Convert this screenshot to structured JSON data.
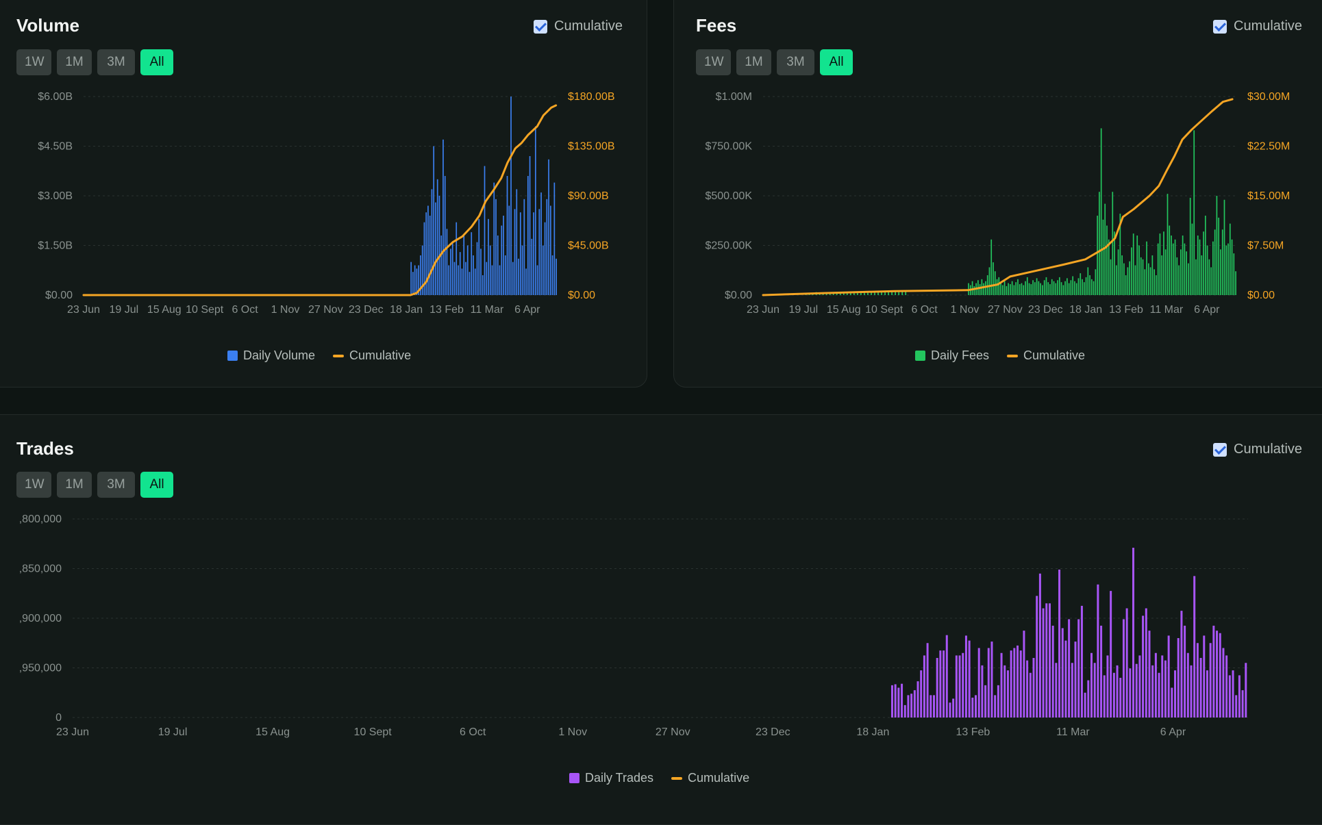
{
  "colors": {
    "volume": "#3b7ff0",
    "fees": "#23c55e",
    "trades": "#a855f7",
    "cumulative": "#f5a524",
    "axis_text": "#8a928f",
    "grid": "#2a3230",
    "active_range": "#12e38f"
  },
  "ranges": [
    "1W",
    "1M",
    "3M",
    "All"
  ],
  "panels": {
    "volume": {
      "title": "Volume",
      "cumulative_label": "Cumulative",
      "legend_bar": "Daily Volume",
      "legend_line": "Cumulative"
    },
    "fees": {
      "title": "Fees",
      "cumulative_label": "Cumulative",
      "legend_bar": "Daily Fees",
      "legend_line": "Cumulative"
    },
    "trades": {
      "title": "Trades",
      "cumulative_label": "Cumulative",
      "legend_bar": "Daily Trades",
      "legend_line": "Cumulative"
    }
  },
  "chart_data": [
    {
      "id": "volume",
      "type": "bar",
      "title": "Volume",
      "x_range": [
        "2024-06-23",
        "2025-04-22"
      ],
      "x_ticks": [
        "23 Jun",
        "19 Jul",
        "15 Aug",
        "10 Sept",
        "6 Oct",
        "1 Nov",
        "27 Nov",
        "23 Dec",
        "18 Jan",
        "13 Feb",
        "11 Mar",
        "6 Apr"
      ],
      "y_ticks": [
        "$0.00",
        "$1.50B",
        "$3.00B",
        "$4.50B",
        "$6.00B"
      ],
      "y2_ticks": [
        "$0.00",
        "$45.00B",
        "$90.00B",
        "$135.00B",
        "$180.00B"
      ],
      "ylim": [
        0,
        6
      ],
      "y2lim": [
        0,
        180
      ],
      "units": "$B",
      "series": [
        {
          "name": "Daily Volume",
          "type": "bar",
          "start": "2025-01-18",
          "values": [
            1.0,
            0.7,
            0.9,
            0.8,
            0.9,
            1.2,
            1.5,
            2.2,
            2.5,
            2.7,
            2.4,
            3.2,
            4.5,
            2.8,
            3.5,
            3.0,
            1.8,
            4.7,
            3.6,
            2.0,
            0.9,
            1.4,
            1.6,
            1.0,
            2.2,
            0.9,
            1.3,
            0.8,
            1.8,
            1.0,
            1.5,
            0.7,
            1.9,
            1.2,
            0.8,
            1.6,
            2.3,
            1.4,
            0.6,
            3.9,
            1.0,
            2.3,
            1.5,
            0.9,
            3.4,
            2.9,
            1.8,
            0.9,
            2.1,
            2.4,
            1.2,
            3.6,
            2.7,
            6.0,
            1.0,
            2.6,
            3.2,
            1.1,
            2.5,
            1.5,
            2.9,
            0.8,
            3.6,
            4.2,
            1.7,
            2.5,
            5.1,
            0.9,
            2.6,
            3.1,
            1.5,
            2.2,
            2.9,
            4.1,
            2.7,
            1.2,
            3.4,
            1.1
          ]
        },
        {
          "name": "Cumulative",
          "type": "line",
          "values_by_date": [
            [
              "2024-06-23",
              0
            ],
            [
              "2025-01-18",
              0
            ],
            [
              "2025-01-22",
              2
            ],
            [
              "2025-01-28",
              12
            ],
            [
              "2025-02-03",
              30
            ],
            [
              "2025-02-08",
              40
            ],
            [
              "2025-02-14",
              48
            ],
            [
              "2025-02-20",
              53
            ],
            [
              "2025-02-26",
              62
            ],
            [
              "2025-03-03",
              72
            ],
            [
              "2025-03-07",
              85
            ],
            [
              "2025-03-12",
              95
            ],
            [
              "2025-03-17",
              106
            ],
            [
              "2025-03-21",
              120
            ],
            [
              "2025-03-26",
              133
            ],
            [
              "2025-03-30",
              138
            ],
            [
              "2025-04-03",
              145
            ],
            [
              "2025-04-09",
              153
            ],
            [
              "2025-04-13",
              163
            ],
            [
              "2025-04-18",
              170
            ],
            [
              "2025-04-21",
              172
            ]
          ]
        }
      ]
    },
    {
      "id": "fees",
      "type": "bar",
      "title": "Fees",
      "x_range": [
        "2024-06-23",
        "2025-04-22"
      ],
      "x_ticks": [
        "23 Jun",
        "19 Jul",
        "15 Aug",
        "10 Sept",
        "6 Oct",
        "1 Nov",
        "27 Nov",
        "23 Dec",
        "18 Jan",
        "13 Feb",
        "11 Mar",
        "6 Apr"
      ],
      "y_ticks": [
        "$0.00",
        "$250.00K",
        "$500.00K",
        "$750.00K",
        "$1.00M"
      ],
      "y2_ticks": [
        "$0.00",
        "$7.50M",
        "$15.00M",
        "$22.50M",
        "$30.00M"
      ],
      "ylim": [
        0,
        1000
      ],
      "y2lim": [
        0,
        30
      ],
      "units": "bars $K, line $M",
      "series": [
        {
          "name": "Daily Fees",
          "type": "bar",
          "start_early": "2024-07-20",
          "early_values": [
            8,
            10,
            12,
            15,
            10,
            14,
            12,
            9,
            13,
            16,
            12,
            10,
            14,
            11,
            15,
            13,
            12,
            17,
            14,
            16,
            13,
            15,
            18,
            14,
            16,
            20,
            17,
            15,
            19,
            22
          ],
          "start": "2024-11-01",
          "values": [
            60,
            50,
            70,
            45,
            60,
            75,
            55,
            80,
            60,
            70,
            100,
            140,
            280,
            165,
            120,
            80,
            90,
            60,
            50,
            70,
            45,
            60,
            55,
            70,
            50,
            65,
            80,
            55,
            60,
            50,
            70,
            90,
            60,
            55,
            75,
            65,
            85,
            70,
            60,
            50,
            75,
            90,
            65,
            55,
            80,
            70,
            60,
            75,
            90,
            65,
            50,
            70,
            85,
            60,
            75,
            95,
            70,
            60,
            85,
            110,
            80,
            65,
            90,
            140,
            100,
            80,
            70,
            130,
            400,
            520,
            840,
            380,
            460,
            350,
            280,
            180,
            520,
            320,
            150,
            230,
            410,
            200,
            160,
            100,
            140,
            170,
            240,
            310,
            150,
            300,
            250,
            190,
            180,
            130,
            270,
            160,
            140,
            200,
            130,
            100,
            260,
            310,
            200,
            320,
            230,
            510,
            350,
            300,
            260,
            280,
            190,
            150,
            230,
            300,
            260,
            220,
            160,
            490,
            360,
            830,
            180,
            300,
            280,
            200,
            320,
            400,
            250,
            180,
            140,
            270,
            330,
            500,
            390,
            230,
            330,
            480,
            250,
            260,
            360,
            280,
            210,
            120
          ]
        },
        {
          "name": "Cumulative",
          "type": "line",
          "values_by_date": [
            [
              "2024-06-23",
              0
            ],
            [
              "2024-08-01",
              0.3
            ],
            [
              "2024-09-15",
              0.6
            ],
            [
              "2024-11-01",
              0.75
            ],
            [
              "2024-11-20",
              1.6
            ],
            [
              "2024-11-28",
              2.8
            ],
            [
              "2024-12-15",
              3.7
            ],
            [
              "2025-01-01",
              4.6
            ],
            [
              "2025-01-15",
              5.4
            ],
            [
              "2025-01-28",
              7.2
            ],
            [
              "2025-02-03",
              8.6
            ],
            [
              "2025-02-08",
              11.8
            ],
            [
              "2025-02-15",
              13.0
            ],
            [
              "2025-02-25",
              15.0
            ],
            [
              "2025-03-03",
              16.5
            ],
            [
              "2025-03-08",
              18.8
            ],
            [
              "2025-03-13",
              21.0
            ],
            [
              "2025-03-18",
              23.5
            ],
            [
              "2025-03-24",
              25.0
            ],
            [
              "2025-03-30",
              26.3
            ],
            [
              "2025-04-06",
              27.8
            ],
            [
              "2025-04-13",
              29.2
            ],
            [
              "2025-04-19",
              29.6
            ]
          ]
        }
      ]
    },
    {
      "id": "trades",
      "type": "bar",
      "title": "Trades",
      "x_range": [
        "2024-06-23",
        "2025-04-22"
      ],
      "x_ticks": [
        "23 Jun",
        "19 Jul",
        "15 Aug",
        "10 Sept",
        "6 Oct",
        "1 Nov",
        "27 Nov",
        "23 Dec",
        "18 Jan",
        "13 Feb",
        "11 Mar",
        "6 Apr"
      ],
      "y_ticks": [
        "0",
        ",950,000",
        ",900,000",
        ",850,000",
        ",800,000"
      ],
      "ylim": [
        0,
        4
      ],
      "units": "relative (labels truncated)",
      "series": [
        {
          "name": "Daily Trades",
          "type": "bar",
          "start": "2025-01-20",
          "values": [
            0.65,
            0.67,
            0.6,
            0.68,
            0.25,
            0.45,
            0.48,
            0.55,
            0.73,
            0.95,
            1.25,
            1.5,
            0.45,
            0.45,
            1.2,
            1.35,
            1.35,
            1.66,
            0.3,
            0.38,
            1.25,
            1.25,
            1.3,
            1.65,
            1.55,
            0.4,
            0.45,
            1.4,
            1.05,
            0.65,
            1.4,
            1.53,
            0.45,
            0.65,
            1.3,
            1.05,
            0.95,
            1.35,
            1.4,
            1.45,
            1.35,
            1.75,
            1.15,
            0.9,
            1.2,
            2.45,
            2.9,
            2.2,
            2.3,
            2.3,
            1.85,
            1.1,
            2.98,
            1.8,
            1.55,
            1.98,
            1.1,
            1.53,
            1.98,
            2.25,
            0.5,
            0.75,
            1.3,
            1.1,
            2.68,
            1.85,
            0.85,
            1.25,
            2.55,
            0.9,
            1.05,
            0.8,
            1.98,
            2.2,
            0.99,
            3.42,
            1.08,
            1.25,
            2.05,
            2.2,
            1.75,
            1.05,
            1.3,
            0.9,
            1.25,
            1.15,
            1.65,
            0.6,
            0.95,
            1.6,
            2.15,
            1.85,
            1.3,
            1.05,
            2.85,
            1.5,
            1.2,
            1.65,
            0.95,
            1.5,
            1.85,
            1.75,
            1.7,
            1.4,
            1.25,
            0.85,
            0.95,
            0.45,
            0.85,
            0.55,
            1.1
          ]
        },
        {
          "name": "Cumulative",
          "type": "line",
          "values_by_date": []
        }
      ]
    }
  ]
}
